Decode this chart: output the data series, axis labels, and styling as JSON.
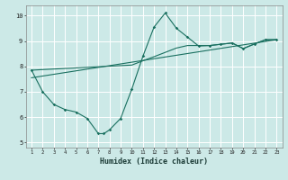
{
  "xlabel": "Humidex (Indice chaleur)",
  "bg_color": "#cce9e7",
  "line_color": "#1a7060",
  "grid_color": "#ffffff",
  "xlim": [
    0.5,
    23.5
  ],
  "ylim": [
    4.8,
    10.4
  ],
  "xticks": [
    1,
    2,
    3,
    4,
    5,
    6,
    7,
    8,
    9,
    10,
    11,
    12,
    13,
    14,
    15,
    16,
    17,
    18,
    19,
    20,
    21,
    22,
    23
  ],
  "yticks": [
    5,
    6,
    7,
    8,
    9,
    10
  ],
  "line1_x": [
    1,
    2,
    3,
    4,
    5,
    6,
    7,
    7.5,
    8,
    9,
    10,
    11,
    12,
    13,
    14,
    15,
    16,
    17,
    18,
    19,
    20,
    21,
    22,
    23
  ],
  "line1_y": [
    7.85,
    7.0,
    6.5,
    6.3,
    6.2,
    5.95,
    5.35,
    5.35,
    5.5,
    5.95,
    7.1,
    8.4,
    9.55,
    10.1,
    9.5,
    9.15,
    8.8,
    8.82,
    8.87,
    8.92,
    8.7,
    8.88,
    9.05,
    9.05
  ],
  "line2_x": [
    1,
    23
  ],
  "line2_y": [
    7.55,
    9.05
  ],
  "line3_x": [
    1,
    10,
    11,
    12,
    13,
    14,
    15,
    16,
    17,
    18,
    19,
    20,
    21,
    22,
    23
  ],
  "line3_y": [
    7.85,
    8.05,
    8.22,
    8.38,
    8.55,
    8.72,
    8.82,
    8.82,
    8.82,
    8.87,
    8.92,
    8.7,
    8.88,
    9.05,
    9.05
  ],
  "xlabel_fontsize": 6,
  "tick_fontsize_x": 4,
  "tick_fontsize_y": 5
}
